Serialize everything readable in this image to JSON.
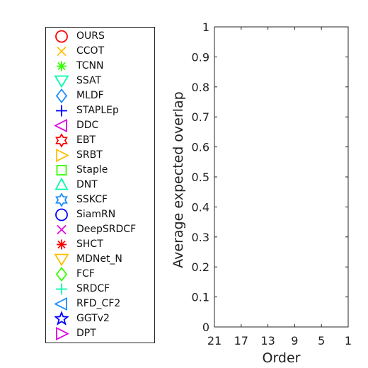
{
  "chart_data": {
    "type": "scatter",
    "title": "",
    "xlabel": "Order",
    "ylabel": "Average expected overlap",
    "x_reversed": true,
    "xlim": [
      1,
      21
    ],
    "ylim": [
      0,
      1
    ],
    "x_ticks": [
      "21",
      "17",
      "13",
      "9",
      "5",
      "1"
    ],
    "x_tick_values": [
      21,
      17,
      13,
      9,
      5,
      1
    ],
    "y_ticks": [
      "0",
      "0.1",
      "0.2",
      "0.3",
      "0.4",
      "0.5",
      "0.6",
      "0.7",
      "0.8",
      "0.9",
      "1"
    ],
    "y_tick_values": [
      0,
      0.1,
      0.2,
      0.3,
      0.4,
      0.5,
      0.6,
      0.7,
      0.8,
      0.9,
      1
    ],
    "grid": false,
    "legend_position": "left-outside",
    "series": [
      {
        "name": "OURS",
        "marker": "circle",
        "color": "#ff0000",
        "points": []
      },
      {
        "name": "CCOT",
        "marker": "x",
        "color": "#ffbf00",
        "points": []
      },
      {
        "name": "TCNN",
        "marker": "asterisk",
        "color": "#33ff00",
        "points": []
      },
      {
        "name": "SSAT",
        "marker": "triangle-down",
        "color": "#00ffaa",
        "points": []
      },
      {
        "name": "MLDF",
        "marker": "diamond",
        "color": "#1a8cff",
        "points": []
      },
      {
        "name": "STAPLEp",
        "marker": "plus",
        "color": "#0000ff",
        "points": []
      },
      {
        "name": "DDC",
        "marker": "triangle-left",
        "color": "#e000e0",
        "points": []
      },
      {
        "name": "EBT",
        "marker": "hexagram",
        "color": "#ff0000",
        "points": []
      },
      {
        "name": "SRBT",
        "marker": "triangle-right",
        "color": "#ffbf00",
        "points": []
      },
      {
        "name": "Staple",
        "marker": "square",
        "color": "#33ff00",
        "points": []
      },
      {
        "name": "DNT",
        "marker": "triangle-up",
        "color": "#00ffaa",
        "points": []
      },
      {
        "name": "SSKCF",
        "marker": "hexagram",
        "color": "#1a8cff",
        "points": []
      },
      {
        "name": "SiamRN",
        "marker": "circle",
        "color": "#0000ff",
        "points": []
      },
      {
        "name": "DeepSRDCF",
        "marker": "x",
        "color": "#e000e0",
        "points": []
      },
      {
        "name": "SHCT",
        "marker": "asterisk",
        "color": "#ff0000",
        "points": []
      },
      {
        "name": "MDNet_N",
        "marker": "triangle-down",
        "color": "#ffbf00",
        "points": []
      },
      {
        "name": "FCF",
        "marker": "diamond",
        "color": "#33ff00",
        "points": []
      },
      {
        "name": "SRDCF",
        "marker": "plus",
        "color": "#00ffaa",
        "points": []
      },
      {
        "name": "RFD_CF2",
        "marker": "triangle-left",
        "color": "#1a8cff",
        "points": []
      },
      {
        "name": "GGTv2",
        "marker": "pentagram",
        "color": "#0000ff",
        "points": []
      },
      {
        "name": "DPT",
        "marker": "triangle-right",
        "color": "#e000e0",
        "points": []
      }
    ]
  }
}
